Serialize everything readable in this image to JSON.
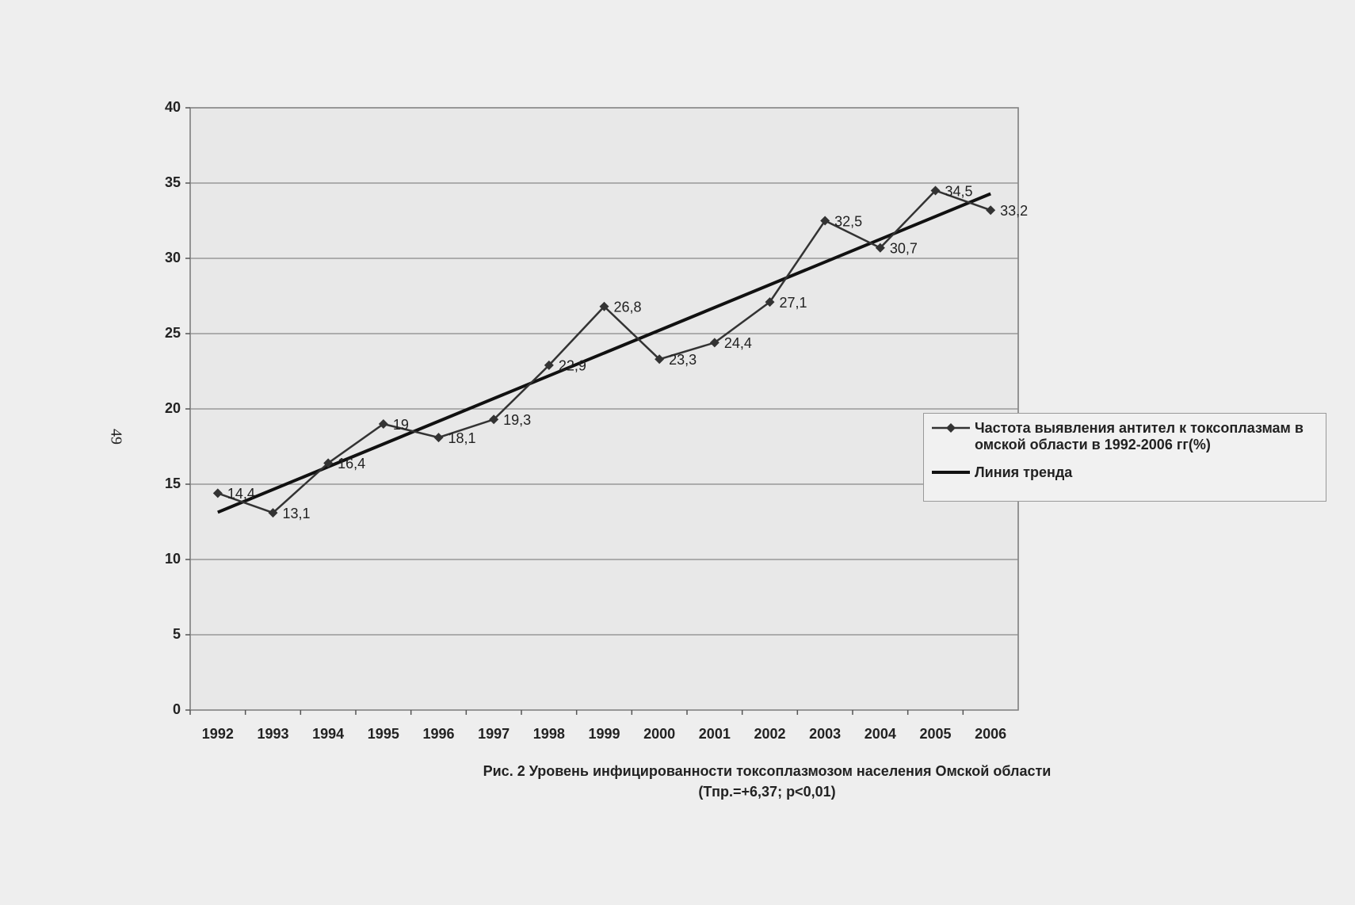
{
  "page_number": "49",
  "chart_data": {
    "type": "line",
    "categories": [
      "1992",
      "1993",
      "1994",
      "1995",
      "1996",
      "1997",
      "1998",
      "1999",
      "2000",
      "2001",
      "2002",
      "2003",
      "2004",
      "2005",
      "2006"
    ],
    "series": [
      {
        "name": "Частота выявления антител к токсоплазмам в омской области в 1992-2006 гг(%)",
        "color": "#333333",
        "values": [
          14.4,
          13.1,
          16.4,
          19,
          18.1,
          19.3,
          22.9,
          26.8,
          23.3,
          24.4,
          27.1,
          32.5,
          30.7,
          34.5,
          33.2
        ],
        "value_labels": [
          "14,4",
          "13,1",
          "16,4",
          "19",
          "18,1",
          "19,3",
          "22,9",
          "26,8",
          "23,3",
          "24,4",
          "27,1",
          "32,5",
          "30,7",
          "34,5",
          "33,2"
        ]
      },
      {
        "name": "Линия тренда",
        "color": "#111111"
      }
    ],
    "ylim": [
      0,
      40
    ],
    "yticks": [
      0,
      5,
      10,
      15,
      20,
      25,
      30,
      35,
      40
    ],
    "grid": true,
    "legend": "right",
    "caption": [
      "Рис. 2 Уровень инфицированности токсоплазмозом населения Омской области",
      "(Тпр.=+6,37; p<0,01)"
    ]
  }
}
